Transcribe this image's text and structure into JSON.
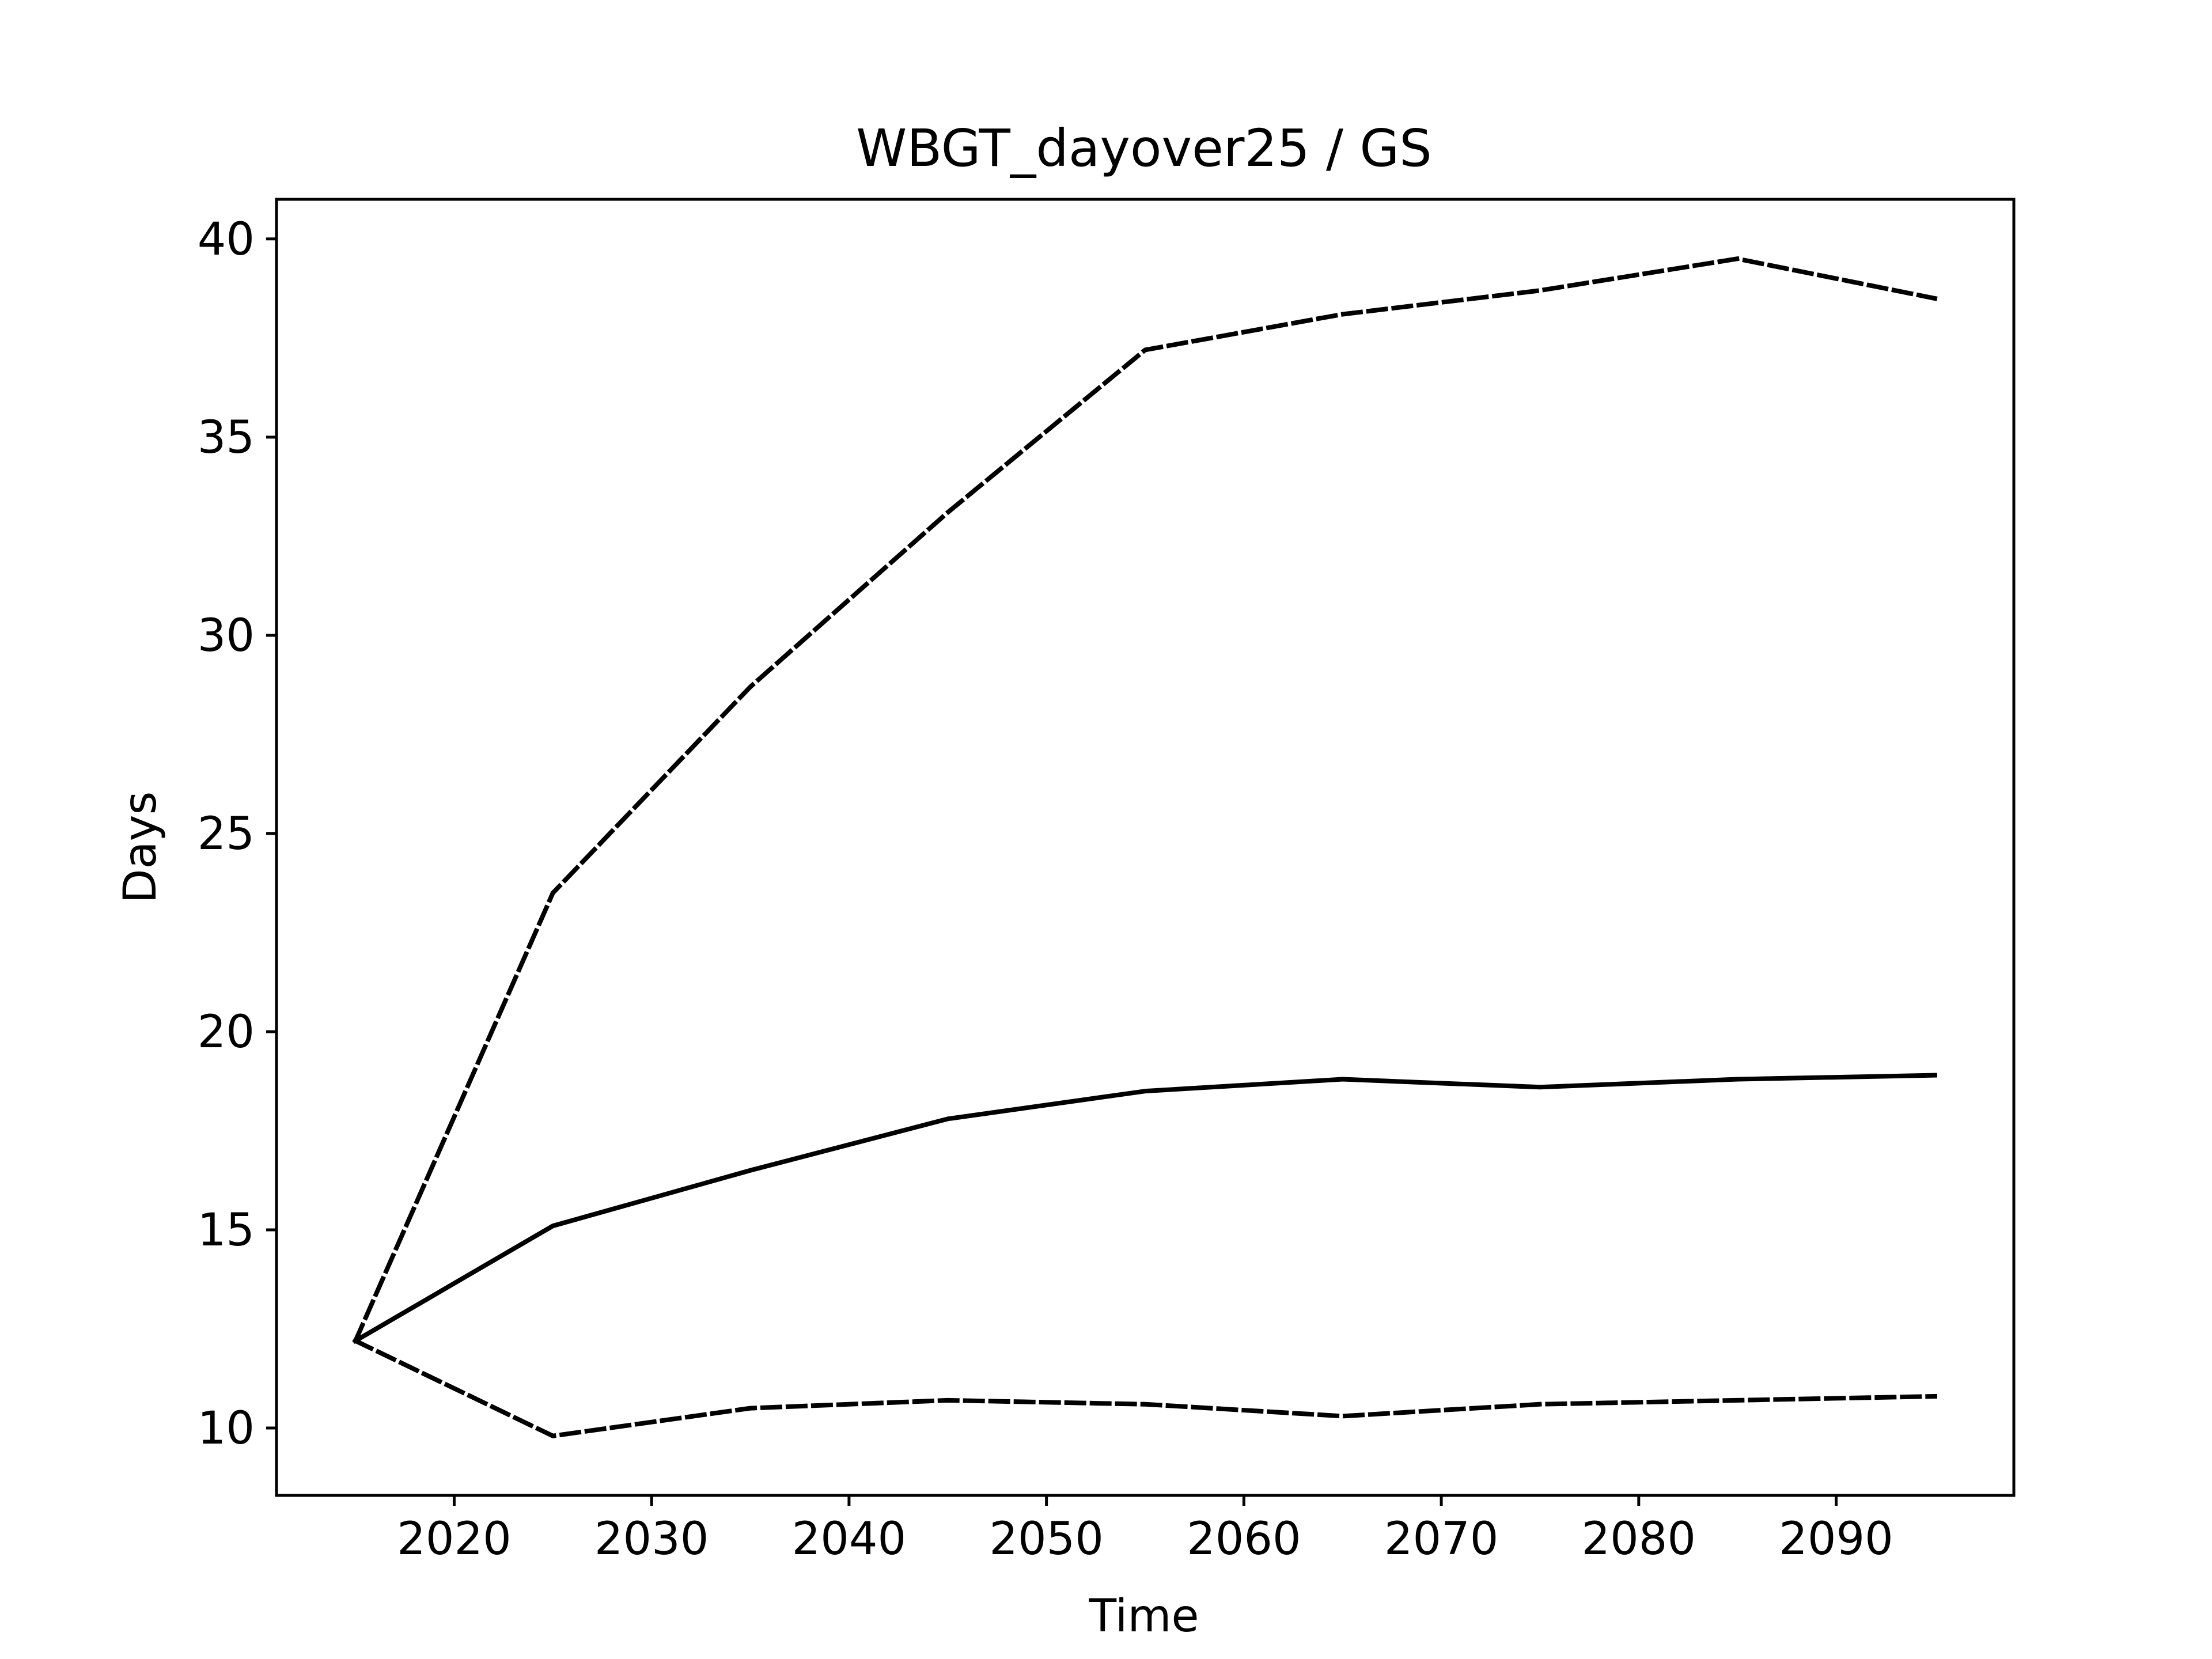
{
  "chart_data": {
    "type": "line",
    "title": "WBGT_dayover25 / GS",
    "xlabel": "Time",
    "ylabel": "Days",
    "x": [
      2015,
      2025,
      2035,
      2045,
      2055,
      2065,
      2075,
      2085,
      2095
    ],
    "xlim": [
      2011,
      2099
    ],
    "ylim": [
      8.3,
      41.0
    ],
    "xticks": [
      2020,
      2030,
      2040,
      2050,
      2060,
      2070,
      2080,
      2090
    ],
    "yticks": [
      10,
      15,
      20,
      25,
      30,
      35,
      40
    ],
    "grid": false,
    "legend": "none",
    "series": [
      {
        "values": [
          12.2,
          9.8,
          10.5,
          10.7,
          10.6,
          10.3,
          10.6,
          10.7,
          10.8
        ],
        "style": "dashed",
        "color": "#000000"
      },
      {
        "values": [
          12.2,
          15.1,
          16.5,
          17.8,
          18.5,
          18.8,
          18.6,
          18.8,
          18.9
        ],
        "style": "solid",
        "color": "#000000"
      },
      {
        "values": [
          12.2,
          23.5,
          28.7,
          33.1,
          37.2,
          38.1,
          38.7,
          39.5,
          38.5
        ],
        "style": "dashed",
        "color": "#000000"
      }
    ]
  }
}
